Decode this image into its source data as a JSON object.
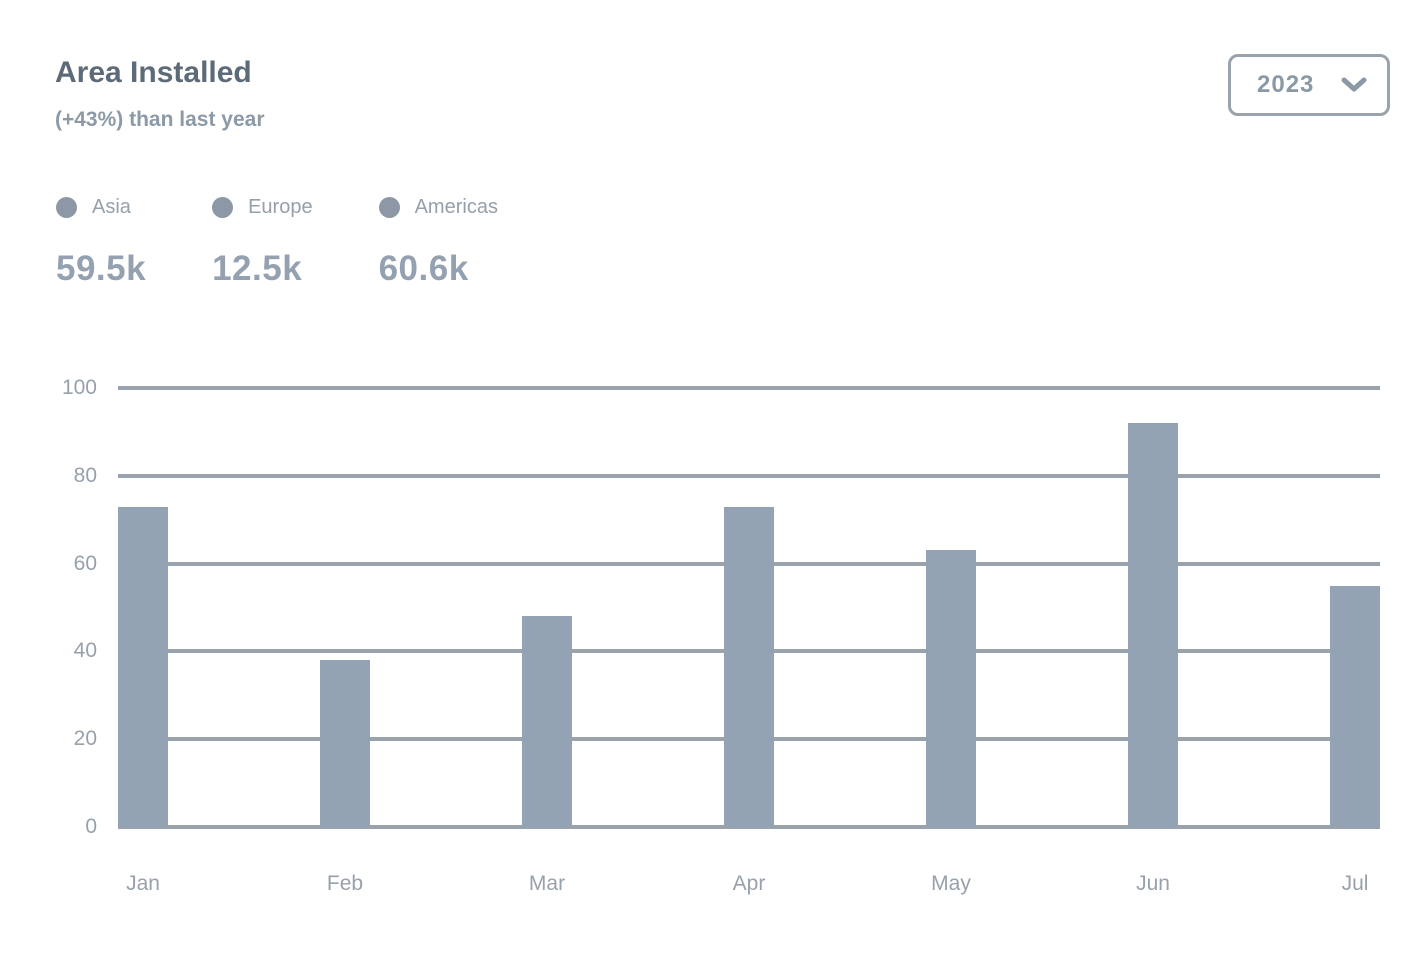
{
  "header": {
    "title": "Area Installed",
    "subtitle": "(+43%) than last year",
    "year_selector": {
      "value": "2023",
      "icon": "chevron-down-icon"
    }
  },
  "legend": {
    "items": [
      {
        "label": "Asia",
        "value": "59.5k",
        "marker": "dot-icon"
      },
      {
        "label": "Europe",
        "value": "12.5k",
        "marker": "dot-icon"
      },
      {
        "label": "Americas",
        "value": "60.6k",
        "marker": "dot-icon"
      }
    ]
  },
  "chart_data": {
    "type": "bar",
    "title": "Area Installed",
    "categories": [
      "Jan",
      "Feb",
      "Mar",
      "Apr",
      "May",
      "Jun",
      "Jul"
    ],
    "series": [
      {
        "name": "Area Installed",
        "values": [
          73,
          38,
          48,
          73,
          63,
          92,
          55
        ]
      }
    ],
    "xlabel": "",
    "ylabel": "",
    "ylim": [
      0,
      100
    ],
    "yticks": [
      0,
      20,
      40,
      60,
      80,
      100
    ],
    "grid": "horizontal",
    "legend_entries": [
      "Asia",
      "Europe",
      "Americas"
    ],
    "legend_position": "top-left",
    "bar_color": "#94a3b3"
  },
  "colors": {
    "title": "#5d6a77",
    "subtitle": "#8c99a6",
    "legend_label": "#95a0ab",
    "legend_marker": "#8c98a6",
    "legend_value": "#93a1b0",
    "gridline": "#9aa2ab",
    "bar": "#94a3b3",
    "axis_label": "#98a1ab",
    "dropdown_border": "#9aa2ab",
    "dropdown_text": "#8b98a6"
  }
}
